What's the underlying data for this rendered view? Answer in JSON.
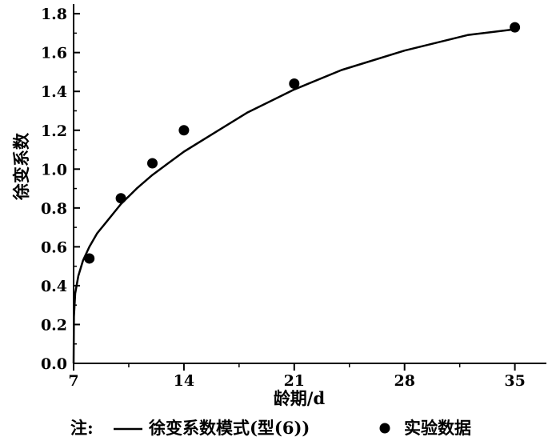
{
  "chart_data": {
    "type": "scatter",
    "title": "",
    "xlabel": "龄期/d",
    "ylabel": "徐变系数",
    "xlim": [
      7,
      37
    ],
    "ylim": [
      0,
      1.85
    ],
    "xticks": [
      7,
      14,
      21,
      28,
      35
    ],
    "yticks": [
      0.0,
      0.2,
      0.4,
      0.6,
      0.8,
      1.0,
      1.2,
      1.4,
      1.6,
      1.8
    ],
    "ytick_labels": [
      "0.0",
      "0.2",
      "0.4",
      "0.6",
      "0.8",
      "1.0",
      "1.2",
      "1.4",
      "1.6",
      "1.8"
    ],
    "grid": false,
    "legend_placement": "bottom",
    "legend_prefix": "注:",
    "series": [
      {
        "name": "徐变系数模式(型(6))",
        "kind": "line",
        "color": "#000000",
        "x": [
          7.02,
          7.1,
          7.3,
          7.6,
          8,
          8.5,
          9,
          10,
          11,
          12,
          13,
          14,
          16,
          18,
          20,
          21,
          24,
          28,
          32,
          35
        ],
        "y": [
          0.24,
          0.36,
          0.45,
          0.53,
          0.6,
          0.67,
          0.72,
          0.82,
          0.9,
          0.97,
          1.03,
          1.09,
          1.19,
          1.29,
          1.37,
          1.41,
          1.51,
          1.61,
          1.69,
          1.72
        ]
      },
      {
        "name": "实验数据",
        "kind": "scatter",
        "color": "#000000",
        "x": [
          8,
          10,
          12,
          14,
          21,
          35
        ],
        "y": [
          0.54,
          0.85,
          1.03,
          1.2,
          1.44,
          1.73
        ]
      }
    ]
  }
}
